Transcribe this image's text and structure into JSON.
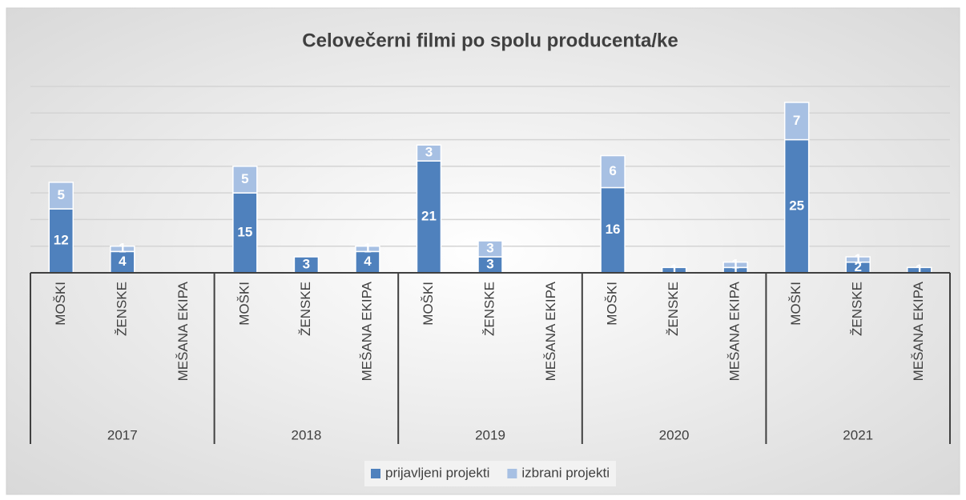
{
  "chart_data": {
    "type": "stacked_bar",
    "title": "Celovečerni filmi po spolu producenta/ke",
    "categories": [
      "MOŠKI",
      "ŽENSKE",
      "MEŠANA EKIPA",
      "MOŠKI",
      "ŽENSKE",
      "MEŠANA EKIPA",
      "MOŠKI",
      "ŽENSKE",
      "MEŠANA EKIPA",
      "MOŠKI",
      "ŽENSKE",
      "MEŠANA EKIPA",
      "MOŠKI",
      "ŽENSKE",
      "MEŠANA EKIPA"
    ],
    "groups": [
      "2017",
      "2018",
      "2019",
      "2020",
      "2021"
    ],
    "series": [
      {
        "name": "prijavljeni projekti",
        "color": "#4f81bd",
        "values": [
          12,
          4,
          null,
          15,
          3,
          4,
          21,
          3,
          null,
          16,
          1,
          1,
          25,
          2,
          1
        ]
      },
      {
        "name": "izbrani projekti",
        "color": "#a7c0e3",
        "values": [
          5,
          1,
          null,
          5,
          null,
          1,
          3,
          3,
          null,
          6,
          null,
          1,
          7,
          1,
          null
        ]
      }
    ],
    "ylim": [
      0,
      35
    ],
    "yticks": [
      0,
      5,
      10,
      15,
      20,
      25,
      30,
      35
    ],
    "grid": true,
    "legend": "bottom"
  }
}
